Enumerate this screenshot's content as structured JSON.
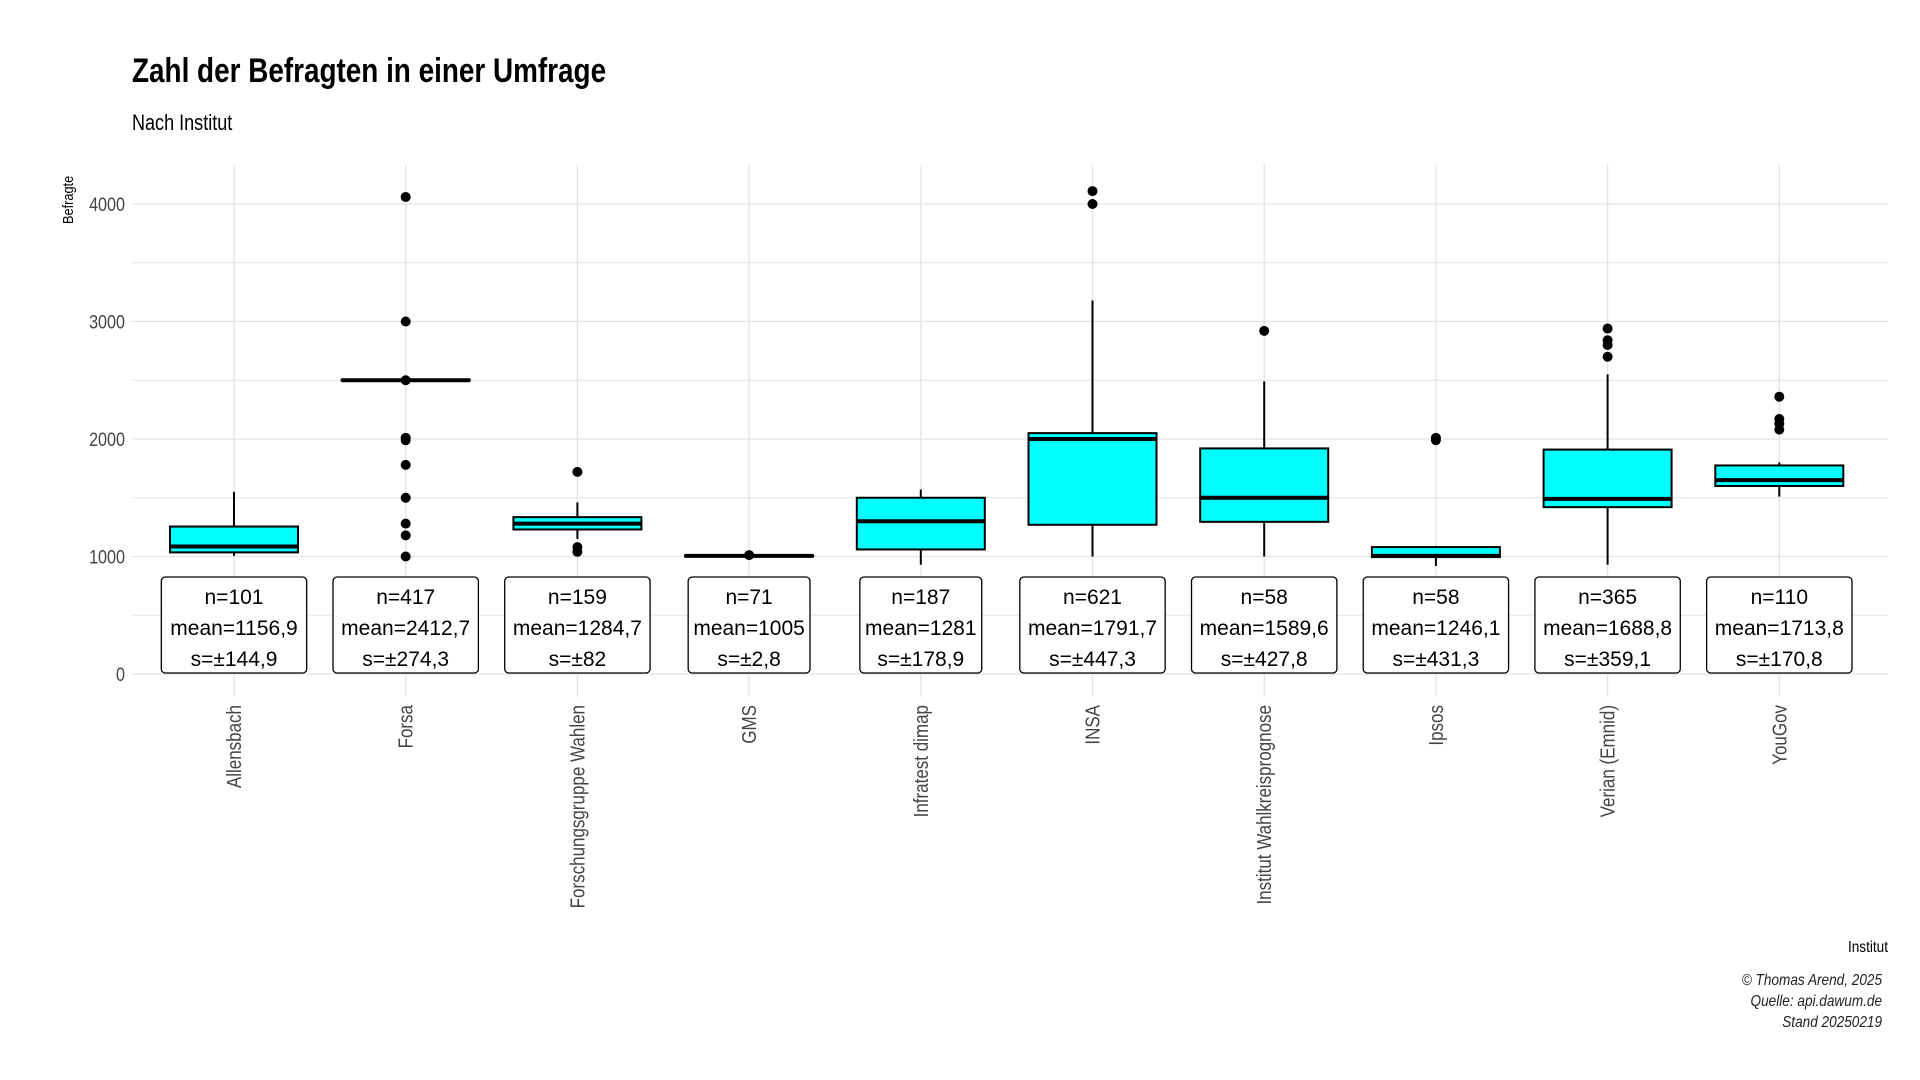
{
  "title": "Zahl der Befragten in einer Umfrage",
  "subtitle": "Nach Institut",
  "caption": [
    "© Thomas Arend, 2025",
    "Quelle: api.dawum.de",
    "Stand 20250219"
  ],
  "colors": {
    "box_fill": "#00FFFF",
    "stroke": "#000000",
    "grid": "#e3e3e3"
  },
  "chart_data": {
    "type": "box",
    "xlabel": "Institut",
    "ylabel": "Befragte",
    "ylim": [
      0,
      4250
    ],
    "yticks": [
      0,
      1000,
      2000,
      3000,
      4000
    ],
    "grid": true,
    "categories": [
      "Allensbach",
      "Forsa",
      "Forschungsgruppe Wahlen",
      "GMS",
      "Infratest dimap",
      "INSA",
      "Institut Wahlkreisprognose",
      "Ipsos",
      "Verian (Emnid)",
      "YouGov"
    ],
    "boxes": [
      {
        "min": 1005,
        "q1": 1035,
        "median": 1085,
        "q3": 1255,
        "max": 1550,
        "outliers": []
      },
      {
        "min": 2495,
        "q1": 2500,
        "median": 2500,
        "q3": 2505,
        "max": 2510,
        "outliers": [
          4060,
          3000,
          2500,
          2010,
          1990,
          1780,
          1500,
          1280,
          1180,
          1000
        ]
      },
      {
        "min": 1150,
        "q1": 1230,
        "median": 1280,
        "q3": 1335,
        "max": 1460,
        "outliers": [
          1720,
          1080,
          1040
        ]
      },
      {
        "min": 1000,
        "q1": 1000,
        "median": 1005,
        "q3": 1010,
        "max": 1015,
        "outliers": [
          1012
        ]
      },
      {
        "min": 930,
        "q1": 1060,
        "median": 1300,
        "q3": 1500,
        "max": 1570,
        "outliers": []
      },
      {
        "min": 1000,
        "q1": 1270,
        "median": 2000,
        "q3": 2050,
        "max": 3180,
        "outliers": [
          4110,
          4000
        ]
      },
      {
        "min": 1000,
        "q1": 1295,
        "median": 1500,
        "q3": 1920,
        "max": 2490,
        "outliers": [
          2920
        ]
      },
      {
        "min": 920,
        "q1": 995,
        "median": 1005,
        "q3": 1080,
        "max": 1090,
        "outliers": [
          2010,
          1990
        ]
      },
      {
        "min": 930,
        "q1": 1420,
        "median": 1490,
        "q3": 1910,
        "max": 2550,
        "outliers": [
          2940,
          2840,
          2800,
          2700
        ]
      },
      {
        "min": 1510,
        "q1": 1600,
        "median": 1650,
        "q3": 1775,
        "max": 1800,
        "outliers": [
          2360,
          2170,
          2130,
          2080
        ]
      }
    ],
    "stats": [
      {
        "n": "n=101",
        "mean": "mean=1156,9",
        "s": "s=±144,9"
      },
      {
        "n": "n=417",
        "mean": "mean=2412,7",
        "s": "s=±274,3"
      },
      {
        "n": "n=159",
        "mean": "mean=1284,7",
        "s": "s=±82"
      },
      {
        "n": "n=71",
        "mean": "mean=1005",
        "s": "s=±2,8"
      },
      {
        "n": "n=187",
        "mean": "mean=1281",
        "s": "s=±178,9"
      },
      {
        "n": "n=621",
        "mean": "mean=1791,7",
        "s": "s=±447,3"
      },
      {
        "n": "n=58",
        "mean": "mean=1589,6",
        "s": "s=±427,8"
      },
      {
        "n": "n=58",
        "mean": "mean=1246,1",
        "s": "s=±431,3"
      },
      {
        "n": "n=365",
        "mean": "mean=1688,8",
        "s": "s=±359,1"
      },
      {
        "n": "n=110",
        "mean": "mean=1713,8",
        "s": "s=±170,8"
      }
    ]
  }
}
